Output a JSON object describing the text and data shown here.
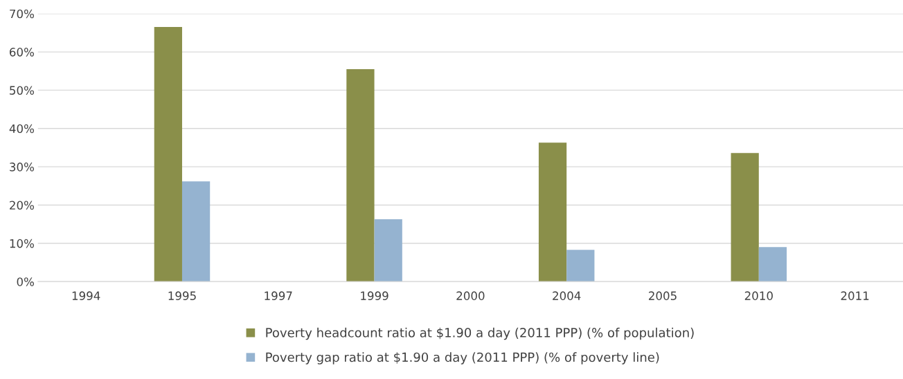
{
  "chart_data": {
    "type": "bar",
    "categories": [
      "1994",
      "1995",
      "1997",
      "1999",
      "2000",
      "2004",
      "2005",
      "2010",
      "2011"
    ],
    "series": [
      {
        "name": "Poverty headcount ratio at $1.90 a day (2011 PPP) (% of population)",
        "color": "#8a8f4a",
        "values": [
          null,
          66.5,
          null,
          55.5,
          null,
          36.3,
          null,
          33.6,
          null
        ]
      },
      {
        "name": "Poverty gap ratio at $1.90 a day (2011 PPP) (% of poverty line)",
        "color": "#95b3d0",
        "values": [
          null,
          26.2,
          null,
          16.3,
          null,
          8.3,
          null,
          9.0,
          null
        ]
      }
    ],
    "ylim": [
      0,
      70
    ],
    "yticks": [
      {
        "value": 0,
        "label": "0%"
      },
      {
        "value": 10,
        "label": "10%"
      },
      {
        "value": 20,
        "label": "20%"
      },
      {
        "value": 30,
        "label": "30%"
      },
      {
        "value": 40,
        "label": "40%"
      },
      {
        "value": 50,
        "label": "50%"
      },
      {
        "value": 60,
        "label": "60%"
      },
      {
        "value": 70,
        "label": "70%"
      }
    ],
    "grid": "y",
    "legend": "bottom"
  }
}
